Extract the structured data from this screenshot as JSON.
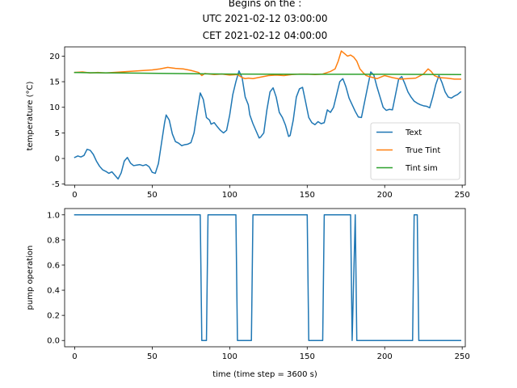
{
  "title": {
    "line1": "Begins on the :",
    "line2": "UTC 2021-02-12 03:00:00",
    "line3": "CET 2021-02-12 04:00:00"
  },
  "colors": {
    "text": "#1f77b4",
    "true_tint": "#ff7f0e",
    "tint_sim": "#2ca02c",
    "pump": "#1f77b4"
  },
  "chart_data": [
    {
      "type": "line",
      "ylabel": "temperature (°C)",
      "xlabel": "",
      "xlim": [
        -6.5,
        252
      ],
      "ylim": [
        -5.2,
        21.8
      ],
      "xticks": [
        0,
        50,
        100,
        150,
        200,
        250
      ],
      "yticks": [
        -5,
        0,
        5,
        10,
        15,
        20
      ],
      "grid": false,
      "legend": "lower right",
      "series": [
        {
          "name": "Text",
          "color": "#1f77b4",
          "points": [
            [
              0,
              0.2
            ],
            [
              2,
              0.5
            ],
            [
              4,
              0.3
            ],
            [
              6,
              0.6
            ],
            [
              8,
              1.8
            ],
            [
              10,
              1.6
            ],
            [
              12,
              0.8
            ],
            [
              14,
              -0.5
            ],
            [
              16,
              -1.5
            ],
            [
              18,
              -2.2
            ],
            [
              20,
              -2.5
            ],
            [
              22,
              -2.9
            ],
            [
              24,
              -2.6
            ],
            [
              26,
              -3.3
            ],
            [
              28,
              -4
            ],
            [
              30,
              -2.8
            ],
            [
              32,
              -0.5
            ],
            [
              34,
              0.2
            ],
            [
              36,
              -0.9
            ],
            [
              38,
              -1.4
            ],
            [
              40,
              -1.3
            ],
            [
              42,
              -1.2
            ],
            [
              44,
              -1.4
            ],
            [
              46,
              -1.2
            ],
            [
              48,
              -1.6
            ],
            [
              50,
              -2.7
            ],
            [
              52,
              -2.9
            ],
            [
              54,
              -1
            ],
            [
              56,
              3
            ],
            [
              58,
              7
            ],
            [
              59,
              8.5
            ],
            [
              61,
              7.5
            ],
            [
              63,
              4.8
            ],
            [
              65,
              3.3
            ],
            [
              67,
              3
            ],
            [
              69,
              2.5
            ],
            [
              71,
              2.7
            ],
            [
              73,
              2.8
            ],
            [
              75,
              3.1
            ],
            [
              77,
              5
            ],
            [
              79,
              9
            ],
            [
              81,
              12.8
            ],
            [
              83,
              11.5
            ],
            [
              85,
              8
            ],
            [
              87,
              7.5
            ],
            [
              88,
              6.7
            ],
            [
              90,
              7
            ],
            [
              92,
              6.2
            ],
            [
              94,
              5.5
            ],
            [
              96,
              5
            ],
            [
              98,
              5.5
            ],
            [
              100,
              8.5
            ],
            [
              102,
              12.5
            ],
            [
              104,
              15
            ],
            [
              106,
              17.1
            ],
            [
              108,
              15.8
            ],
            [
              110,
              12
            ],
            [
              112,
              10.5
            ],
            [
              113,
              8.5
            ],
            [
              115,
              6.8
            ],
            [
              117,
              5.4
            ],
            [
              119,
              4
            ],
            [
              120,
              4.2
            ],
            [
              122,
              5
            ],
            [
              124,
              9.5
            ],
            [
              126,
              13
            ],
            [
              128,
              13.8
            ],
            [
              130,
              12
            ],
            [
              132,
              9
            ],
            [
              134,
              8
            ],
            [
              136,
              6.5
            ],
            [
              138,
              4.3
            ],
            [
              139,
              4.5
            ],
            [
              141,
              7.5
            ],
            [
              143,
              12
            ],
            [
              145,
              13.6
            ],
            [
              147,
              13.9
            ],
            [
              149,
              11
            ],
            [
              151,
              8
            ],
            [
              153,
              7
            ],
            [
              155,
              6.6
            ],
            [
              157,
              7.2
            ],
            [
              159,
              6.8
            ],
            [
              161,
              7
            ],
            [
              163,
              9.5
            ],
            [
              165,
              9
            ],
            [
              167,
              10
            ],
            [
              169,
              12.5
            ],
            [
              171,
              15
            ],
            [
              173,
              15.6
            ],
            [
              175,
              14
            ],
            [
              177,
              11.8
            ],
            [
              179,
              10.5
            ],
            [
              181,
              9.2
            ],
            [
              183,
              8.1
            ],
            [
              185,
              8
            ],
            [
              187,
              11
            ],
            [
              189,
              14
            ],
            [
              191,
              16.9
            ],
            [
              193,
              16.3
            ],
            [
              195,
              14
            ],
            [
              197,
              12
            ],
            [
              199,
              10
            ],
            [
              201,
              9.4
            ],
            [
              203,
              9.6
            ],
            [
              205,
              9.5
            ],
            [
              207,
              12.5
            ],
            [
              209,
              15.5
            ],
            [
              211,
              16
            ],
            [
              213,
              14.6
            ],
            [
              215,
              13
            ],
            [
              217,
              12
            ],
            [
              219,
              11.2
            ],
            [
              221,
              10.8
            ],
            [
              223,
              10.5
            ],
            [
              225,
              10.3
            ],
            [
              227,
              10.2
            ],
            [
              229,
              9.9
            ],
            [
              231,
              12
            ],
            [
              233,
              14.5
            ],
            [
              235,
              16.2
            ],
            [
              237,
              14.8
            ],
            [
              239,
              13
            ],
            [
              241,
              12
            ],
            [
              243,
              11.8
            ],
            [
              245,
              12.2
            ],
            [
              247,
              12.5
            ],
            [
              249,
              13
            ]
          ]
        },
        {
          "name": "True Tint",
          "color": "#ff7f0e",
          "points": [
            [
              0,
              16.8
            ],
            [
              5,
              16.9
            ],
            [
              10,
              16.7
            ],
            [
              15,
              16.8
            ],
            [
              20,
              16.7
            ],
            [
              25,
              16.8
            ],
            [
              30,
              16.9
            ],
            [
              35,
              17
            ],
            [
              40,
              17.1
            ],
            [
              45,
              17.2
            ],
            [
              50,
              17.3
            ],
            [
              55,
              17.5
            ],
            [
              60,
              17.8
            ],
            [
              65,
              17.6
            ],
            [
              70,
              17.5
            ],
            [
              75,
              17.2
            ],
            [
              80,
              16.8
            ],
            [
              82,
              16.2
            ],
            [
              84,
              16.6
            ],
            [
              90,
              16.4
            ],
            [
              95,
              16.5
            ],
            [
              100,
              16.3
            ],
            [
              105,
              16.4
            ],
            [
              108,
              15.8
            ],
            [
              110,
              15.6
            ],
            [
              112,
              15.7
            ],
            [
              115,
              15.6
            ],
            [
              120,
              15.9
            ],
            [
              125,
              16.2
            ],
            [
              130,
              16.3
            ],
            [
              135,
              16.2
            ],
            [
              140,
              16.4
            ],
            [
              145,
              16.5
            ],
            [
              150,
              16.5
            ],
            [
              155,
              16.4
            ],
            [
              160,
              16.5
            ],
            [
              165,
              17
            ],
            [
              168,
              17.5
            ],
            [
              170,
              19
            ],
            [
              172,
              21
            ],
            [
              174,
              20.5
            ],
            [
              176,
              20
            ],
            [
              178,
              20.2
            ],
            [
              180,
              19.8
            ],
            [
              182,
              19
            ],
            [
              184,
              17.5
            ],
            [
              186,
              16.8
            ],
            [
              188,
              16.2
            ],
            [
              190,
              16
            ],
            [
              195,
              15.6
            ],
            [
              200,
              16.2
            ],
            [
              205,
              15.8
            ],
            [
              210,
              15.5
            ],
            [
              215,
              15.6
            ],
            [
              220,
              15.7
            ],
            [
              225,
              16.5
            ],
            [
              228,
              17.5
            ],
            [
              230,
              17
            ],
            [
              232,
              16.2
            ],
            [
              235,
              15.8
            ],
            [
              240,
              15.7
            ],
            [
              245,
              15.5
            ],
            [
              249,
              15.5
            ]
          ]
        },
        {
          "name": "Tint sim",
          "color": "#2ca02c",
          "points": [
            [
              0,
              16.8
            ],
            [
              10,
              16.75
            ],
            [
              30,
              16.7
            ],
            [
              60,
              16.6
            ],
            [
              100,
              16.5
            ],
            [
              150,
              16.45
            ],
            [
              200,
              16.45
            ],
            [
              249,
              16.4
            ]
          ]
        }
      ]
    },
    {
      "type": "line",
      "ylabel": "pump operation",
      "xlabel": "time (time step = 3600 s)",
      "xlim": [
        -6.5,
        252
      ],
      "ylim": [
        -0.05,
        1.05
      ],
      "xticks": [
        0,
        50,
        100,
        150,
        200,
        250
      ],
      "yticks": [
        0.0,
        0.2,
        0.4,
        0.6,
        0.8,
        1.0
      ],
      "grid": false,
      "series": [
        {
          "name": "",
          "color": "#1f77b4",
          "points": [
            [
              0,
              1
            ],
            [
              81,
              1
            ],
            [
              82,
              0
            ],
            [
              85,
              0
            ],
            [
              86,
              1
            ],
            [
              104,
              1
            ],
            [
              105,
              0
            ],
            [
              114,
              0
            ],
            [
              115,
              1
            ],
            [
              150,
              1
            ],
            [
              151,
              0
            ],
            [
              160,
              0
            ],
            [
              161,
              1
            ],
            [
              178,
              1
            ],
            [
              179,
              0
            ],
            [
              181,
              1
            ],
            [
              182,
              0
            ],
            [
              218,
              0
            ],
            [
              219,
              1
            ],
            [
              221,
              1
            ],
            [
              222,
              0
            ],
            [
              249,
              0
            ]
          ]
        }
      ]
    }
  ]
}
